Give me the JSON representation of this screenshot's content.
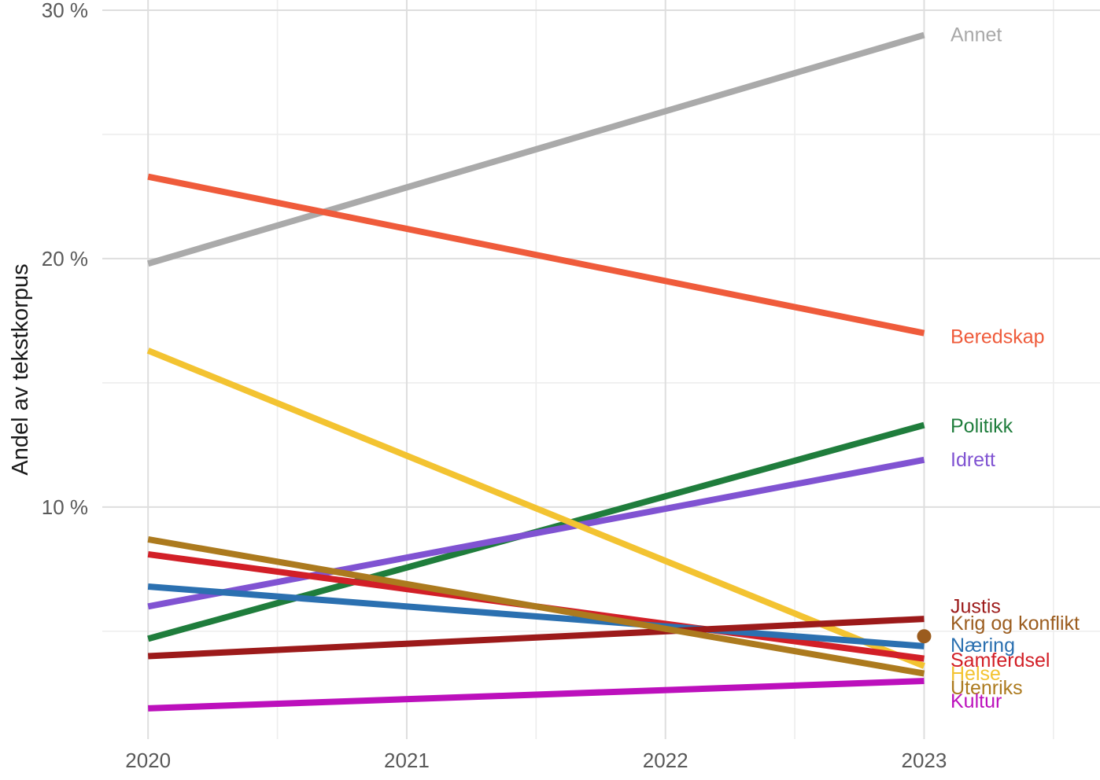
{
  "chart_data": {
    "type": "line",
    "title": "",
    "xlabel": "",
    "ylabel": "Andel av tekstkorpus",
    "grid": true,
    "legend_position": "direct-labels-right",
    "xlim": [
      2019.823,
      2023.68
    ],
    "ylim": [
      0.66,
      30.41
    ],
    "x_ticks": [
      2020,
      2021,
      2022,
      2023
    ],
    "x_tick_labels": [
      "2020",
      "2021",
      "2022",
      "2023"
    ],
    "x_minor_ticks": [
      2020.5,
      2021.5,
      2022.5,
      2023.5
    ],
    "y_ticks": [
      10,
      20,
      30
    ],
    "y_tick_labels": [
      "10 %",
      "20 %",
      "30 %"
    ],
    "y_minor_ticks": [
      5,
      15,
      25
    ],
    "series": [
      {
        "name": "Annet",
        "color": "#aaaaaa",
        "label_color": "#a8a8a8",
        "marker": "line",
        "x": [
          2020,
          2023
        ],
        "values": [
          19.8,
          29.0
        ],
        "label_at": 29.0
      },
      {
        "name": "Beredskap",
        "color": "#ef5b3b",
        "label_color": "#ef5b3b",
        "marker": "line",
        "x": [
          2020,
          2023
        ],
        "values": [
          23.3,
          17.0
        ],
        "label_at": 16.85
      },
      {
        "name": "Politikk",
        "color": "#1f7d3c",
        "label_color": "#1f7d3c",
        "marker": "line",
        "x": [
          2020,
          2023
        ],
        "values": [
          4.7,
          13.3
        ],
        "label_at": 13.25
      },
      {
        "name": "Idrett",
        "color": "#8053d2",
        "label_color": "#8053d2",
        "marker": "line",
        "x": [
          2020,
          2023
        ],
        "values": [
          6.0,
          11.9
        ],
        "label_at": 11.9
      },
      {
        "name": "Helse",
        "color": "#f3c331",
        "label_color": "#f3c331",
        "marker": "line",
        "x": [
          2020,
          2023
        ],
        "values": [
          16.3,
          3.6
        ],
        "label_at": 3.28
      },
      {
        "name": "Samferdsel",
        "color": "#d21f27",
        "label_color": "#d21f27",
        "marker": "line",
        "x": [
          2020,
          2023
        ],
        "values": [
          8.1,
          3.9
        ],
        "label_at": 3.82
      },
      {
        "name": "Næring",
        "color": "#2b70b0",
        "label_color": "#2b70b0",
        "marker": "line",
        "x": [
          2020,
          2023
        ],
        "values": [
          6.8,
          4.4
        ],
        "label_at": 4.43
      },
      {
        "name": "Krig og konflikt",
        "color": "#9b5c1e",
        "label_color": "#9b5c1e",
        "marker": "point",
        "x": [
          2023
        ],
        "values": [
          4.8
        ],
        "label_at": 5.32
      },
      {
        "name": "Justis",
        "color": "#9c1a1a",
        "label_color": "#9c1a1a",
        "marker": "line",
        "x": [
          2020,
          2023
        ],
        "values": [
          4.0,
          5.5
        ],
        "label_at": 6.0
      },
      {
        "name": "Utenriks",
        "color": "#ac7a1e",
        "label_color": "#ac7a1e",
        "marker": "line",
        "x": [
          2020,
          2023
        ],
        "values": [
          8.7,
          3.3
        ],
        "label_at": 2.72
      },
      {
        "name": "Kultur",
        "color": "#bc10bc",
        "label_color": "#bc10bc",
        "marker": "line",
        "x": [
          2020,
          2023
        ],
        "values": [
          1.9,
          3.0
        ],
        "label_at": 2.18
      }
    ]
  },
  "axes": {
    "y_title": "Andel av tekstkorpus"
  },
  "colors": {
    "background": "#ffffff",
    "grid_major": "#dedede",
    "grid_minor": "#ededed",
    "axis_text": "#595959",
    "axis_title_text": "#1a1a1a"
  }
}
